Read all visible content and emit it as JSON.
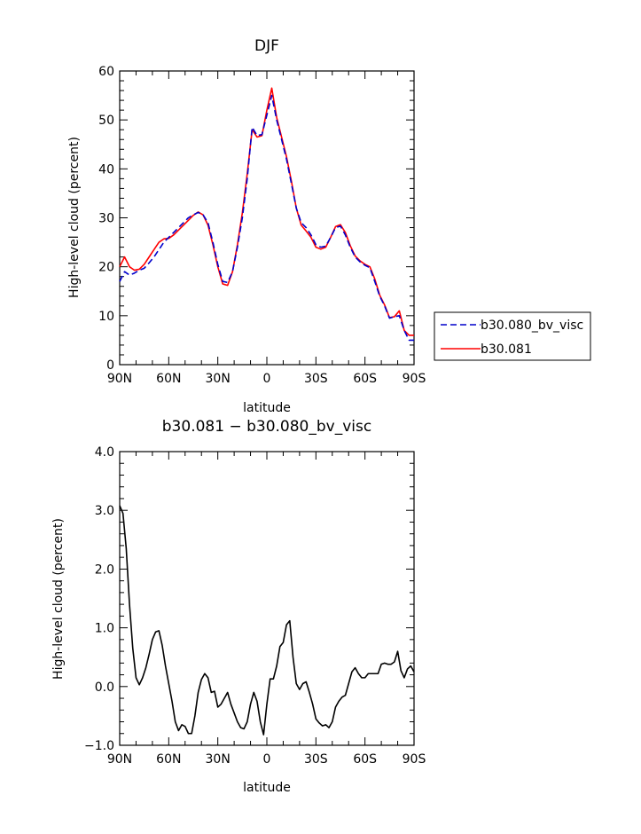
{
  "chart_data": [
    {
      "type": "line",
      "title": "DJF",
      "xlabel": "latitude",
      "ylabel": "High-level cloud (percent)",
      "xlim": [
        -90,
        90
      ],
      "ylim": [
        0,
        60
      ],
      "x_ticks": [
        -90,
        -60,
        -30,
        0,
        30,
        60,
        90
      ],
      "x_tick_labels": [
        "90N",
        "60N",
        "30N",
        "0",
        "30S",
        "60S",
        "90S"
      ],
      "y_ticks": [
        0,
        10,
        20,
        30,
        40,
        50,
        60
      ],
      "y_tick_labels": [
        "0",
        "10",
        "20",
        "30",
        "40",
        "50",
        "60"
      ],
      "legend_position": "right",
      "x": [
        -90,
        -87,
        -84,
        -81,
        -78,
        -75,
        -72,
        -69,
        -66,
        -63,
        -60,
        -57,
        -54,
        -51,
        -48,
        -45,
        -42,
        -39,
        -36,
        -33,
        -30,
        -27,
        -24,
        -21,
        -18,
        -15,
        -12,
        -9,
        -6,
        -3,
        0,
        3,
        6,
        9,
        12,
        15,
        18,
        21,
        24,
        27,
        30,
        33,
        36,
        39,
        42,
        45,
        48,
        51,
        54,
        57,
        60,
        63,
        66,
        69,
        72,
        75,
        78,
        81,
        84,
        87,
        90
      ],
      "series": [
        {
          "name": "b30.080_bv_visc",
          "color": "#0000cc",
          "dash": "dashed",
          "values": [
            17.0,
            19.0,
            18.3,
            18.7,
            19.3,
            19.7,
            20.8,
            22.0,
            23.5,
            25.0,
            26.0,
            27.0,
            28.0,
            29.0,
            30.0,
            30.6,
            31.1,
            30.6,
            29.0,
            25.0,
            20.5,
            17.0,
            16.8,
            19.0,
            24.0,
            30.0,
            38.0,
            48.5,
            46.8,
            47.0,
            51.0,
            55.0,
            50.0,
            46.0,
            42.0,
            37.0,
            32.0,
            29.0,
            28.0,
            26.5,
            24.5,
            24.0,
            24.2,
            26.0,
            28.0,
            28.3,
            26.5,
            24.0,
            22.0,
            21.0,
            20.3,
            19.8,
            17.0,
            14.0,
            12.0,
            9.5,
            9.8,
            10.0,
            7.0,
            5.0,
            5.0
          ]
        },
        {
          "name": "b30.081",
          "color": "#ff0000",
          "dash": "solid",
          "values": [
            20.0,
            22.0,
            20.0,
            19.3,
            19.5,
            20.5,
            22.0,
            23.5,
            25.0,
            25.7,
            25.8,
            26.5,
            27.5,
            28.5,
            29.5,
            30.5,
            31.2,
            30.6,
            28.5,
            24.5,
            20.0,
            16.5,
            16.2,
            19.0,
            24.5,
            31.0,
            39.0,
            48.0,
            46.5,
            46.8,
            52.0,
            56.5,
            50.5,
            46.5,
            42.5,
            37.5,
            32.0,
            28.5,
            27.3,
            26.0,
            24.0,
            23.6,
            24.0,
            26.0,
            28.2,
            28.6,
            27.0,
            24.3,
            22.2,
            21.2,
            20.5,
            20.0,
            17.5,
            14.2,
            12.2,
            9.6,
            9.8,
            11.0,
            7.0,
            6.0,
            6.0
          ]
        }
      ]
    },
    {
      "type": "line",
      "title": "b30.081 − b30.080_bv_visc",
      "xlabel": "latitude",
      "ylabel": "High-level cloud (percent)",
      "xlim": [
        -90,
        90
      ],
      "ylim": [
        -1.0,
        4.0
      ],
      "x_ticks": [
        -90,
        -60,
        -30,
        0,
        30,
        60,
        90
      ],
      "x_tick_labels": [
        "90N",
        "60N",
        "30N",
        "0",
        "30S",
        "60S",
        "90S"
      ],
      "y_ticks": [
        -1.0,
        0.0,
        1.0,
        2.0,
        3.0,
        4.0
      ],
      "y_tick_labels": [
        "−1.0",
        "0.0",
        "1.0",
        "2.0",
        "3.0",
        "4.0"
      ],
      "x": [
        -90,
        -88,
        -86,
        -84,
        -82,
        -80,
        -78,
        -76,
        -74,
        -72,
        -70,
        -68,
        -66,
        -64,
        -62,
        -60,
        -58,
        -56,
        -54,
        -52,
        -50,
        -48,
        -46,
        -44,
        -42,
        -40,
        -38,
        -36,
        -34,
        -32,
        -30,
        -28,
        -26,
        -24,
        -22,
        -20,
        -18,
        -16,
        -14,
        -12,
        -10,
        -8,
        -6,
        -4,
        -2,
        0,
        2,
        4,
        6,
        8,
        10,
        12,
        14,
        16,
        18,
        20,
        22,
        24,
        26,
        28,
        30,
        32,
        34,
        36,
        38,
        40,
        42,
        44,
        46,
        48,
        50,
        52,
        54,
        56,
        58,
        60,
        62,
        64,
        66,
        68,
        70,
        72,
        74,
        76,
        78,
        80,
        82,
        84,
        86,
        88,
        90
      ],
      "series": [
        {
          "name": "",
          "color": "#000000",
          "dash": "solid",
          "values": [
            3.08,
            2.95,
            2.35,
            1.4,
            0.65,
            0.15,
            0.03,
            0.15,
            0.32,
            0.55,
            0.8,
            0.93,
            0.95,
            0.7,
            0.35,
            0.05,
            -0.25,
            -0.6,
            -0.75,
            -0.65,
            -0.68,
            -0.8,
            -0.8,
            -0.5,
            -0.1,
            0.12,
            0.22,
            0.15,
            -0.1,
            -0.08,
            -0.35,
            -0.3,
            -0.2,
            -0.1,
            -0.3,
            -0.45,
            -0.6,
            -0.7,
            -0.72,
            -0.6,
            -0.3,
            -0.1,
            -0.25,
            -0.6,
            -0.82,
            -0.3,
            0.13,
            0.13,
            0.35,
            0.68,
            0.75,
            1.05,
            1.12,
            0.5,
            0.05,
            -0.05,
            0.05,
            0.08,
            -0.1,
            -0.3,
            -0.55,
            -0.62,
            -0.67,
            -0.65,
            -0.7,
            -0.6,
            -0.35,
            -0.25,
            -0.18,
            -0.15,
            0.05,
            0.25,
            0.32,
            0.22,
            0.15,
            0.15,
            0.22,
            0.22,
            0.22,
            0.22,
            0.38,
            0.4,
            0.38,
            0.38,
            0.42,
            0.6,
            0.27,
            0.15,
            0.3,
            0.35,
            0.25
          ]
        }
      ]
    }
  ]
}
